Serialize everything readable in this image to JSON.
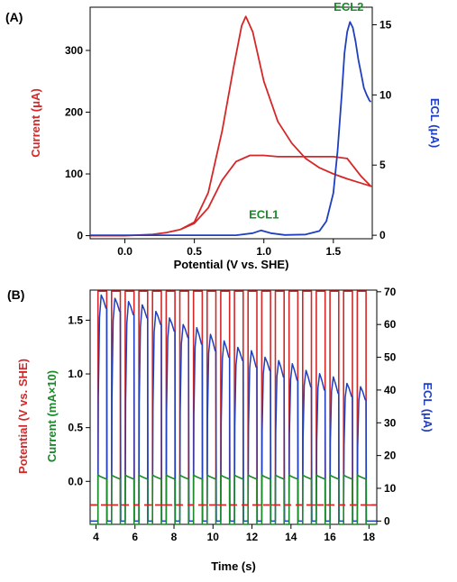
{
  "colors": {
    "red": "#d62728",
    "blue": "#1f3fbf",
    "green": "#1a8a2a"
  },
  "chart_data": [
    {
      "panel": "(A)",
      "type": "line",
      "xlabel": "Potential (V vs. SHE)",
      "ylabel_left": "Current (μA)",
      "ylabel_right": "ECL (μA)",
      "xlim": [
        -0.25,
        1.78
      ],
      "ylim_left": [
        -5,
        370
      ],
      "ylim_right": [
        -0.25,
        16.25
      ],
      "xticks": [
        0.0,
        0.5,
        1.0,
        1.5
      ],
      "xtick_labels": [
        "0.0",
        "0.5",
        "1.0",
        "1.5"
      ],
      "yticks_left": [
        0,
        100,
        200,
        300
      ],
      "ytick_labels_left": [
        "0",
        "100",
        "200",
        "300"
      ],
      "yticks_right": [
        0,
        5,
        10,
        15
      ],
      "ytick_labels_right": [
        "0",
        "5",
        "10",
        "15"
      ],
      "annotations": [
        {
          "text": "ECL1",
          "x": 1.0,
          "y_right": 1.2
        },
        {
          "text": "ECL2",
          "x": 1.61,
          "y_right": 16.0
        }
      ],
      "series": [
        {
          "axis": "left",
          "color": "red",
          "x": [
            -0.25,
            0.0,
            0.2,
            0.3,
            0.4,
            0.5,
            0.6,
            0.7,
            0.78,
            0.84,
            0.87,
            0.92,
            1.0,
            1.1,
            1.2,
            1.3,
            1.4,
            1.5,
            1.6,
            1.7,
            1.77,
            1.7,
            1.6,
            1.5,
            1.4,
            1.3,
            1.2,
            1.1,
            1.0,
            0.9,
            0.8,
            0.7,
            0.6,
            0.5,
            0.4,
            0.3,
            0.2,
            0.0,
            -0.25
          ],
          "y": [
            0,
            0,
            2,
            5,
            10,
            22,
            70,
            170,
            270,
            340,
            355,
            330,
            250,
            185,
            150,
            125,
            110,
            100,
            92,
            85,
            80,
            96,
            125,
            128,
            128,
            128,
            128,
            128,
            130,
            130,
            120,
            90,
            45,
            20,
            10,
            5,
            2,
            0,
            0
          ]
        },
        {
          "axis": "right",
          "color": "blue",
          "x": [
            -0.25,
            0.8,
            0.92,
            0.98,
            1.05,
            1.15,
            1.3,
            1.4,
            1.45,
            1.5,
            1.53,
            1.56,
            1.58,
            1.6,
            1.62,
            1.64,
            1.66,
            1.68,
            1.7,
            1.72,
            1.74,
            1.76,
            1.77
          ],
          "y": [
            0,
            0,
            0.15,
            0.35,
            0.15,
            0.02,
            0.05,
            0.3,
            1.0,
            3.0,
            6.0,
            10.0,
            13.0,
            14.5,
            15.2,
            14.8,
            13.8,
            12.5,
            11.5,
            10.5,
            10.0,
            9.6,
            9.5
          ]
        }
      ]
    },
    {
      "panel": "(B)",
      "type": "line",
      "xlabel": "Time (s)",
      "ylabel_left": "Potential (V vs. SHE)",
      "ylabel_left2": "Current (mA×10)",
      "ylabel_right": "ECL (μA)",
      "xlim": [
        3.7,
        18.4
      ],
      "ylim_left": [
        -0.4,
        1.78
      ],
      "ylim_right": [
        -1,
        70.5
      ],
      "xticks": [
        4,
        6,
        8,
        10,
        12,
        14,
        16,
        18
      ],
      "xtick_labels": [
        "4",
        "6",
        "8",
        "10",
        "12",
        "14",
        "16",
        "18"
      ],
      "yticks_left": [
        0.0,
        0.5,
        1.0,
        1.5
      ],
      "ytick_labels_left": [
        "0.0",
        "0.5",
        "1.0",
        "1.5"
      ],
      "yticks_right": [
        0,
        10,
        20,
        30,
        40,
        50,
        60,
        70
      ],
      "ytick_labels_right": [
        "0",
        "10",
        "20",
        "30",
        "40",
        "50",
        "60",
        "70"
      ],
      "pulse_train": {
        "start": 4.1,
        "period": 0.7,
        "on_duration": 0.45,
        "count": 20,
        "potential_low": -0.22,
        "potential_high": 1.77,
        "current_on_start": 0.06,
        "current_on_end": 0.02,
        "current_off": -0.4,
        "ecl_off": 0,
        "ecl_peak": [
          69,
          68,
          67,
          66,
          64,
          62,
          60,
          59,
          57,
          55,
          53,
          52,
          50,
          49,
          48,
          46,
          45,
          44,
          42,
          41
        ],
        "ecl_end": [
          65,
          64,
          63,
          62,
          60,
          58,
          56,
          54,
          52,
          50,
          49,
          47,
          46,
          44,
          43,
          41,
          40,
          39,
          38,
          37
        ]
      }
    }
  ]
}
